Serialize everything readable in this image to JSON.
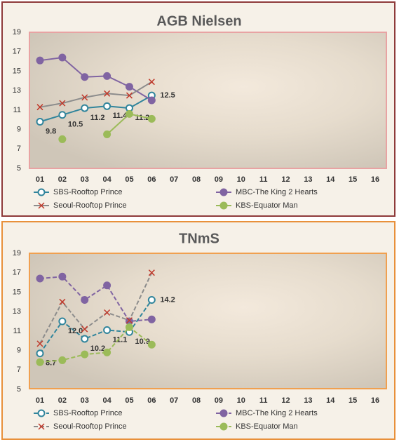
{
  "chart_data": [
    {
      "type": "line",
      "title": "AGB Nielsen",
      "dashed": false,
      "categories": [
        "01",
        "02",
        "03",
        "04",
        "05",
        "06",
        "07",
        "08",
        "09",
        "10",
        "11",
        "12",
        "13",
        "14",
        "15",
        "16"
      ],
      "ylim": [
        5,
        19
      ],
      "yticks": [
        5,
        7,
        9,
        11,
        13,
        15,
        17,
        19
      ],
      "series": [
        {
          "name": "SBS-Rooftop Prince",
          "color": "#31859c",
          "marker": "circle",
          "marker_fill": "#ffffff",
          "values": [
            9.8,
            10.5,
            11.2,
            11.4,
            11.2,
            12.5,
            null,
            null,
            null,
            null,
            null,
            null,
            null,
            null,
            null,
            null
          ],
          "value_labels": [
            "9.8",
            "10.5",
            "11.2",
            "11.4",
            "11.2",
            "12.5",
            null,
            null,
            null,
            null,
            null,
            null,
            null,
            null,
            null,
            null
          ]
        },
        {
          "name": "MBC-The King 2 Hearts",
          "color": "#8064a2",
          "marker": "circle",
          "marker_fill": "#8064a2",
          "values": [
            16.1,
            16.4,
            14.4,
            14.5,
            13.4,
            12.0,
            null,
            null,
            null,
            null,
            null,
            null,
            null,
            null,
            null,
            null
          ]
        },
        {
          "name": "Seoul-Rooftop Prince",
          "color": "#8c8c8c",
          "marker": "x",
          "marker_fill": "#c0392b",
          "values": [
            11.3,
            11.7,
            12.3,
            12.7,
            12.5,
            13.9,
            null,
            null,
            null,
            null,
            null,
            null,
            null,
            null,
            null,
            null
          ]
        },
        {
          "name": "KBS-Equator Man",
          "color": "#9bbb59",
          "marker": "circle",
          "marker_fill": "#9bbb59",
          "values": [
            null,
            8.0,
            null,
            8.5,
            10.6,
            10.1,
            null,
            null,
            null,
            null,
            null,
            null,
            null,
            null,
            null,
            null
          ]
        }
      ]
    },
    {
      "type": "line",
      "title": "TNmS",
      "dashed": true,
      "categories": [
        "01",
        "02",
        "03",
        "04",
        "05",
        "06",
        "07",
        "08",
        "09",
        "10",
        "11",
        "12",
        "13",
        "14",
        "15",
        "16"
      ],
      "ylim": [
        5,
        19
      ],
      "yticks": [
        5,
        7,
        9,
        11,
        13,
        15,
        17,
        19
      ],
      "series": [
        {
          "name": "SBS-Rooftop Prince",
          "color": "#31859c",
          "marker": "circle",
          "marker_fill": "#ffffff",
          "values": [
            8.7,
            12.0,
            10.2,
            11.1,
            10.9,
            14.2,
            null,
            null,
            null,
            null,
            null,
            null,
            null,
            null,
            null,
            null
          ],
          "value_labels": [
            "8.7",
            "12.0",
            "10.2",
            "11.1",
            "10.9",
            "14.2",
            null,
            null,
            null,
            null,
            null,
            null,
            null,
            null,
            null,
            null
          ]
        },
        {
          "name": "MBC-The King 2 Hearts",
          "color": "#8064a2",
          "marker": "circle",
          "marker_fill": "#8064a2",
          "values": [
            16.4,
            16.6,
            14.2,
            15.7,
            12.0,
            12.2,
            null,
            null,
            null,
            null,
            null,
            null,
            null,
            null,
            null,
            null
          ]
        },
        {
          "name": "Seoul-Rooftop Prince",
          "color": "#8c8c8c",
          "marker": "x",
          "marker_fill": "#c0392b",
          "values": [
            9.7,
            14.0,
            11.2,
            12.9,
            12.1,
            17.0,
            null,
            null,
            null,
            null,
            null,
            null,
            null,
            null,
            null,
            null
          ]
        },
        {
          "name": "KBS-Equator Man",
          "color": "#9bbb59",
          "marker": "circle",
          "marker_fill": "#9bbb59",
          "values": [
            7.8,
            8.0,
            8.6,
            8.8,
            11.4,
            9.6,
            null,
            null,
            null,
            null,
            null,
            null,
            null,
            null,
            null,
            null
          ]
        }
      ]
    }
  ]
}
